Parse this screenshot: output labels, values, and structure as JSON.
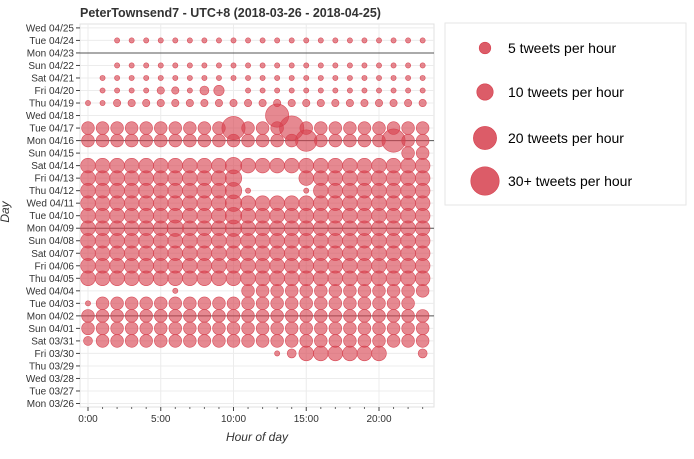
{
  "chart_data": {
    "type": "scatter",
    "title": "PeterTownsend7 - UTC+8 (2018-03-26 - 2018-04-25)",
    "xlabel": "Hour of day",
    "ylabel": "Day",
    "x_ticks": [
      "0:00",
      "5:00",
      "10:00",
      "15:00",
      "20:00"
    ],
    "x_tick_values": [
      0,
      5,
      10,
      15,
      20
    ],
    "xlim": [
      -0.5,
      23.5
    ],
    "days": [
      "Mon 03/26",
      "Tue 03/27",
      "Wed 03/28",
      "Thu 03/29",
      "Fri 03/30",
      "Sat 03/31",
      "Sun 04/01",
      "Mon 04/02",
      "Tue 04/03",
      "Wed 04/04",
      "Thu 04/05",
      "Fri 04/06",
      "Sat 04/07",
      "Sun 04/08",
      "Mon 04/09",
      "Tue 04/10",
      "Wed 04/11",
      "Thu 04/12",
      "Fri 04/13",
      "Sat 04/14",
      "Sun 04/15",
      "Mon 04/16",
      "Tue 04/17",
      "Wed 04/18",
      "Thu 04/19",
      "Fri 04/20",
      "Sat 04/21",
      "Sun 04/22",
      "Mon 04/23",
      "Tue 04/24",
      "Wed 04/25"
    ],
    "week_lines": [
      "Mon 04/02",
      "Mon 04/09",
      "Mon 04/16",
      "Mon 04/23"
    ],
    "grid": true,
    "marker_color": "#d6404e",
    "series": [
      {
        "day": "Fri 03/30",
        "counts": [
          0,
          0,
          0,
          0,
          0,
          0,
          0,
          0,
          0,
          0,
          0,
          0,
          0,
          1,
          3,
          8,
          8,
          8,
          8,
          8,
          8,
          0,
          0,
          3
        ]
      },
      {
        "day": "Sat 03/31",
        "counts": [
          3,
          6,
          6,
          6,
          6,
          6,
          6,
          6,
          6,
          6,
          6,
          6,
          6,
          6,
          6,
          6,
          6,
          6,
          6,
          6,
          6,
          6,
          6,
          6
        ]
      },
      {
        "day": "Sun 04/01",
        "counts": [
          6,
          6,
          6,
          6,
          6,
          6,
          6,
          6,
          6,
          6,
          6,
          6,
          6,
          6,
          6,
          6,
          6,
          6,
          6,
          6,
          6,
          6,
          6,
          6
        ]
      },
      {
        "day": "Mon 04/02",
        "counts": [
          6,
          6,
          6,
          6,
          6,
          6,
          6,
          6,
          6,
          6,
          6,
          6,
          6,
          6,
          6,
          6,
          6,
          6,
          6,
          6,
          6,
          6,
          6,
          6
        ]
      },
      {
        "day": "Tue 04/03",
        "counts": [
          1,
          6,
          6,
          6,
          6,
          6,
          6,
          6,
          6,
          6,
          6,
          6,
          6,
          6,
          6,
          6,
          6,
          6,
          6,
          6,
          6,
          6,
          6,
          0
        ]
      },
      {
        "day": "Wed 04/04",
        "counts": [
          0,
          0,
          0,
          0,
          0,
          0,
          1,
          0,
          0,
          0,
          0,
          6,
          6,
          6,
          6,
          6,
          6,
          6,
          6,
          6,
          6,
          6,
          6,
          6
        ]
      },
      {
        "day": "Thu 04/05",
        "counts": [
          8,
          8,
          8,
          8,
          8,
          8,
          8,
          8,
          8,
          8,
          8,
          8,
          8,
          8,
          8,
          8,
          8,
          8,
          8,
          8,
          8,
          8,
          8,
          8
        ]
      },
      {
        "day": "Fri 04/06",
        "counts": [
          8,
          8,
          8,
          8,
          8,
          8,
          8,
          8,
          8,
          8,
          8,
          8,
          8,
          8,
          8,
          8,
          8,
          8,
          8,
          8,
          8,
          8,
          8,
          8
        ]
      },
      {
        "day": "Sat 04/07",
        "counts": [
          8,
          8,
          8,
          8,
          8,
          8,
          8,
          8,
          8,
          8,
          8,
          8,
          8,
          8,
          8,
          8,
          8,
          8,
          8,
          8,
          8,
          8,
          8,
          8
        ]
      },
      {
        "day": "Sun 04/08",
        "counts": [
          8,
          8,
          8,
          8,
          8,
          8,
          8,
          8,
          8,
          8,
          8,
          8,
          8,
          8,
          8,
          8,
          8,
          8,
          8,
          8,
          8,
          8,
          8,
          8
        ]
      },
      {
        "day": "Mon 04/09",
        "counts": [
          8,
          8,
          8,
          8,
          8,
          8,
          10,
          8,
          8,
          8,
          10,
          8,
          8,
          8,
          8,
          8,
          8,
          8,
          8,
          8,
          8,
          8,
          8,
          8
        ]
      },
      {
        "day": "Tue 04/10",
        "counts": [
          8,
          8,
          8,
          8,
          8,
          8,
          8,
          8,
          8,
          8,
          10,
          8,
          8,
          8,
          8,
          8,
          8,
          8,
          8,
          8,
          8,
          8,
          8,
          8
        ]
      },
      {
        "day": "Wed 04/11",
        "counts": [
          8,
          8,
          8,
          8,
          8,
          8,
          8,
          8,
          8,
          8,
          10,
          8,
          8,
          8,
          8,
          8,
          8,
          8,
          8,
          8,
          8,
          8,
          8,
          8
        ]
      },
      {
        "day": "Thu 04/12",
        "counts": [
          8,
          8,
          8,
          8,
          8,
          8,
          8,
          8,
          8,
          8,
          10,
          1,
          0,
          0,
          0,
          1,
          8,
          8,
          8,
          8,
          8,
          8,
          8,
          8
        ]
      },
      {
        "day": "Fri 04/13",
        "counts": [
          8,
          8,
          8,
          8,
          8,
          8,
          8,
          8,
          8,
          8,
          10,
          0,
          0,
          0,
          0,
          8,
          8,
          8,
          8,
          8,
          8,
          8,
          8,
          8
        ]
      },
      {
        "day": "Sat 04/14",
        "counts": [
          8,
          8,
          8,
          8,
          8,
          8,
          8,
          8,
          8,
          8,
          10,
          8,
          8,
          8,
          8,
          8,
          8,
          8,
          8,
          8,
          8,
          8,
          8,
          8
        ]
      },
      {
        "day": "Sun 04/15",
        "counts": [
          0,
          0,
          0,
          0,
          0,
          0,
          0,
          0,
          0,
          0,
          0,
          0,
          0,
          0,
          0,
          0,
          0,
          0,
          0,
          0,
          0,
          0,
          6,
          6
        ]
      },
      {
        "day": "Mon 04/16",
        "counts": [
          6,
          6,
          6,
          6,
          6,
          6,
          6,
          6,
          6,
          6,
          6,
          6,
          6,
          6,
          6,
          17,
          6,
          6,
          6,
          6,
          6,
          20,
          6,
          6
        ]
      },
      {
        "day": "Tue 04/17",
        "counts": [
          6,
          6,
          6,
          6,
          6,
          6,
          6,
          6,
          6,
          6,
          20,
          6,
          6,
          6,
          22,
          6,
          6,
          6,
          6,
          6,
          6,
          6,
          6,
          6
        ]
      },
      {
        "day": "Wed 04/18",
        "counts": [
          0,
          0,
          0,
          0,
          0,
          0,
          0,
          0,
          0,
          0,
          0,
          0,
          0,
          20,
          0,
          0,
          0,
          0,
          0,
          0,
          0,
          0,
          0,
          0
        ]
      },
      {
        "day": "Thu 04/19",
        "counts": [
          1,
          1,
          2,
          2,
          2,
          2,
          2,
          2,
          2,
          2,
          2,
          2,
          2,
          2,
          2,
          2,
          2,
          2,
          2,
          2,
          2,
          2,
          2,
          2
        ]
      },
      {
        "day": "Fri 04/20",
        "counts": [
          0,
          1,
          1,
          1,
          1,
          2,
          2,
          1,
          3,
          4,
          0,
          1,
          1,
          1,
          1,
          1,
          1,
          1,
          1,
          1,
          1,
          1,
          1,
          1
        ]
      },
      {
        "day": "Sat 04/21",
        "counts": [
          0,
          1,
          1,
          1,
          1,
          1,
          1,
          1,
          1,
          1,
          1,
          1,
          1,
          1,
          1,
          1,
          1,
          1,
          1,
          1,
          1,
          1,
          1,
          1
        ]
      },
      {
        "day": "Sun 04/22",
        "counts": [
          0,
          0,
          1,
          1,
          1,
          1,
          1,
          1,
          1,
          1,
          1,
          1,
          1,
          1,
          1,
          1,
          1,
          1,
          1,
          1,
          1,
          1,
          1,
          1
        ]
      },
      {
        "day": "Tue 04/24",
        "counts": [
          0,
          0,
          1,
          1,
          1,
          1,
          1,
          1,
          1,
          1,
          1,
          1,
          1,
          1,
          1,
          1,
          1,
          1,
          1,
          1,
          1,
          1,
          1,
          1
        ]
      }
    ]
  },
  "legend": {
    "placement": "right",
    "items": [
      {
        "label": "5 tweets per hour",
        "count": 5
      },
      {
        "label": "10 tweets per hour",
        "count": 10
      },
      {
        "label": "20 tweets per hour",
        "count": 20
      },
      {
        "label": "30+ tweets per hour",
        "count": 30
      }
    ]
  }
}
